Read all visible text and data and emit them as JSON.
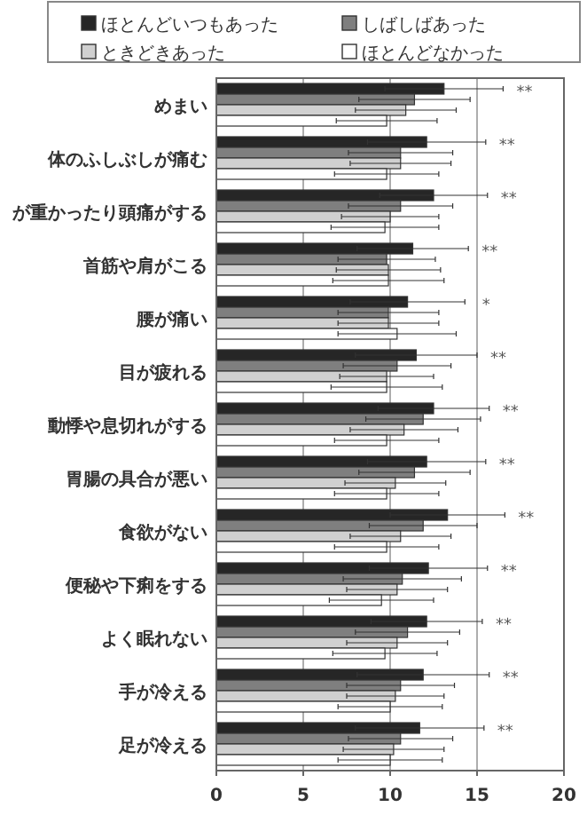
{
  "chart_data": {
    "type": "bar",
    "orientation": "horizontal",
    "categories": [
      "めまい",
      "体のふしぶしが痛む",
      "が重かったり頭痛がする",
      "首筋や肩がこる",
      "腰が痛い",
      "目が疲れる",
      "動悸や息切れがする",
      "胃腸の具合が悪い",
      "食欲がない",
      "便秘や下痢をする",
      "よく眠れない",
      "手が冷える",
      "足が冷える"
    ],
    "series": [
      {
        "name": "ほとんどいつもあった",
        "color": "#262626",
        "values": [
          13.1,
          12.1,
          12.5,
          11.3,
          11.0,
          11.5,
          12.5,
          12.1,
          13.3,
          12.2,
          12.1,
          11.9,
          11.7
        ],
        "errors": [
          3.4,
          3.4,
          3.1,
          3.2,
          3.3,
          3.5,
          3.2,
          3.4,
          3.3,
          3.4,
          3.2,
          3.8,
          3.7
        ]
      },
      {
        "name": "しばしばあった",
        "color": "#7f7f7f",
        "values": [
          11.4,
          10.6,
          10.6,
          9.8,
          9.9,
          10.4,
          11.9,
          11.4,
          11.9,
          10.7,
          11.0,
          10.6,
          10.6
        ],
        "errors": [
          3.2,
          3.0,
          3.0,
          2.8,
          2.9,
          3.1,
          3.3,
          3.2,
          3.1,
          3.4,
          3.0,
          3.1,
          3.0
        ]
      },
      {
        "name": "ときどきあった",
        "color": "#d0d0d0",
        "values": [
          10.9,
          10.6,
          10.0,
          9.9,
          9.9,
          9.8,
          10.8,
          10.3,
          10.6,
          10.4,
          10.4,
          10.3,
          10.2
        ],
        "errors": [
          2.9,
          2.9,
          2.8,
          3.0,
          2.9,
          2.7,
          3.1,
          2.9,
          2.9,
          2.9,
          2.9,
          2.8,
          2.9
        ]
      },
      {
        "name": "ほとんどなかった",
        "color": "#ffffff",
        "values": [
          9.8,
          9.8,
          9.7,
          9.9,
          10.4,
          9.8,
          9.8,
          9.8,
          9.8,
          9.5,
          9.7,
          10.0,
          10.0
        ],
        "errors": [
          2.9,
          3.0,
          3.1,
          3.2,
          3.4,
          3.2,
          3.0,
          3.0,
          3.0,
          3.0,
          3.0,
          3.0,
          3.0
        ]
      }
    ],
    "xlim": [
      0,
      20
    ],
    "xticks": [
      0,
      5,
      10,
      15,
      20
    ],
    "grid": "x",
    "legend": "top",
    "annotations": [
      "**",
      "**",
      "**",
      "**",
      "*",
      "**",
      "**",
      "**",
      "**",
      "**",
      "**",
      "**",
      "**"
    ]
  }
}
